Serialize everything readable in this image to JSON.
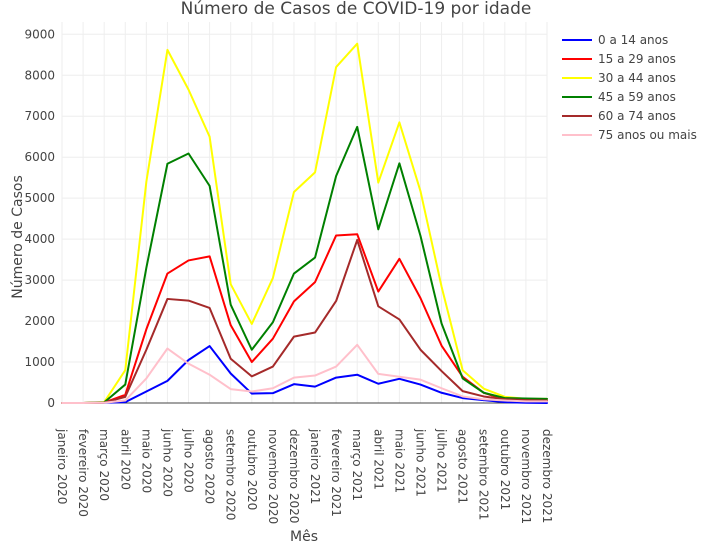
{
  "chart_data": {
    "type": "line",
    "title": "Número de Casos de COVID-19 por idade",
    "xlabel": "Mês",
    "ylabel": "Número de Casos",
    "ylim": [
      0,
      9300
    ],
    "yticks": [
      0,
      1000,
      2000,
      3000,
      4000,
      5000,
      6000,
      7000,
      8000,
      9000
    ],
    "grid": true,
    "legend_position": "top-right",
    "categories": [
      "janeiro 2020",
      "fevereiro 2020",
      "março 2020",
      "abril 2020",
      "maio 2020",
      "junho 2020",
      "julho 2020",
      "agosto 2020",
      "setembro 2020",
      "outubro 2020",
      "novembro 2020",
      "dezembro 2020",
      "janeiro 2021",
      "fevereiro 2021",
      "março 2021",
      "abril 2021",
      "maio 2021",
      "junho 2021",
      "julho 2021",
      "agosto 2021",
      "setembro 2021",
      "outubro 2021",
      "novembro 2021",
      "dezembro 2021"
    ],
    "series": [
      {
        "name": "0 a 14 anos",
        "color": "#0000ff",
        "values": [
          0,
          0,
          5,
          20,
          280,
          540,
          1050,
          1390,
          720,
          230,
          240,
          460,
          400,
          620,
          690,
          470,
          590,
          450,
          250,
          120,
          70,
          20,
          5,
          0
        ]
      },
      {
        "name": "15 a 29 anos",
        "color": "#ff0000",
        "values": [
          0,
          0,
          10,
          200,
          1800,
          3160,
          3480,
          3580,
          1900,
          1000,
          1570,
          2480,
          2950,
          4090,
          4120,
          2720,
          3520,
          2560,
          1400,
          640,
          250,
          80,
          50,
          50
        ]
      },
      {
        "name": "30 a 44 anos",
        "color": "#ffff00",
        "values": [
          0,
          0,
          20,
          800,
          5400,
          8620,
          7650,
          6500,
          2900,
          1930,
          3050,
          5150,
          5630,
          8200,
          8770,
          5380,
          6850,
          5170,
          2840,
          800,
          350,
          150,
          100,
          100
        ]
      },
      {
        "name": "45 a 59 anos",
        "color": "#008000",
        "values": [
          0,
          0,
          15,
          450,
          3300,
          5840,
          6090,
          5300,
          2400,
          1300,
          1970,
          3160,
          3550,
          5540,
          6740,
          4240,
          5850,
          4080,
          1940,
          600,
          250,
          120,
          110,
          100
        ]
      },
      {
        "name": "60 a 74 anos",
        "color": "#a52a2a",
        "values": [
          0,
          0,
          10,
          150,
          1300,
          2540,
          2500,
          2320,
          1080,
          650,
          890,
          1620,
          1720,
          2490,
          3980,
          2360,
          2040,
          1300,
          780,
          290,
          160,
          90,
          70,
          60
        ]
      },
      {
        "name": "75 anos ou mais",
        "color": "#ffc0cb",
        "values": [
          0,
          0,
          5,
          60,
          600,
          1330,
          960,
          690,
          340,
          280,
          360,
          620,
          670,
          890,
          1420,
          710,
          640,
          570,
          360,
          160,
          90,
          60,
          40,
          40
        ]
      }
    ]
  }
}
